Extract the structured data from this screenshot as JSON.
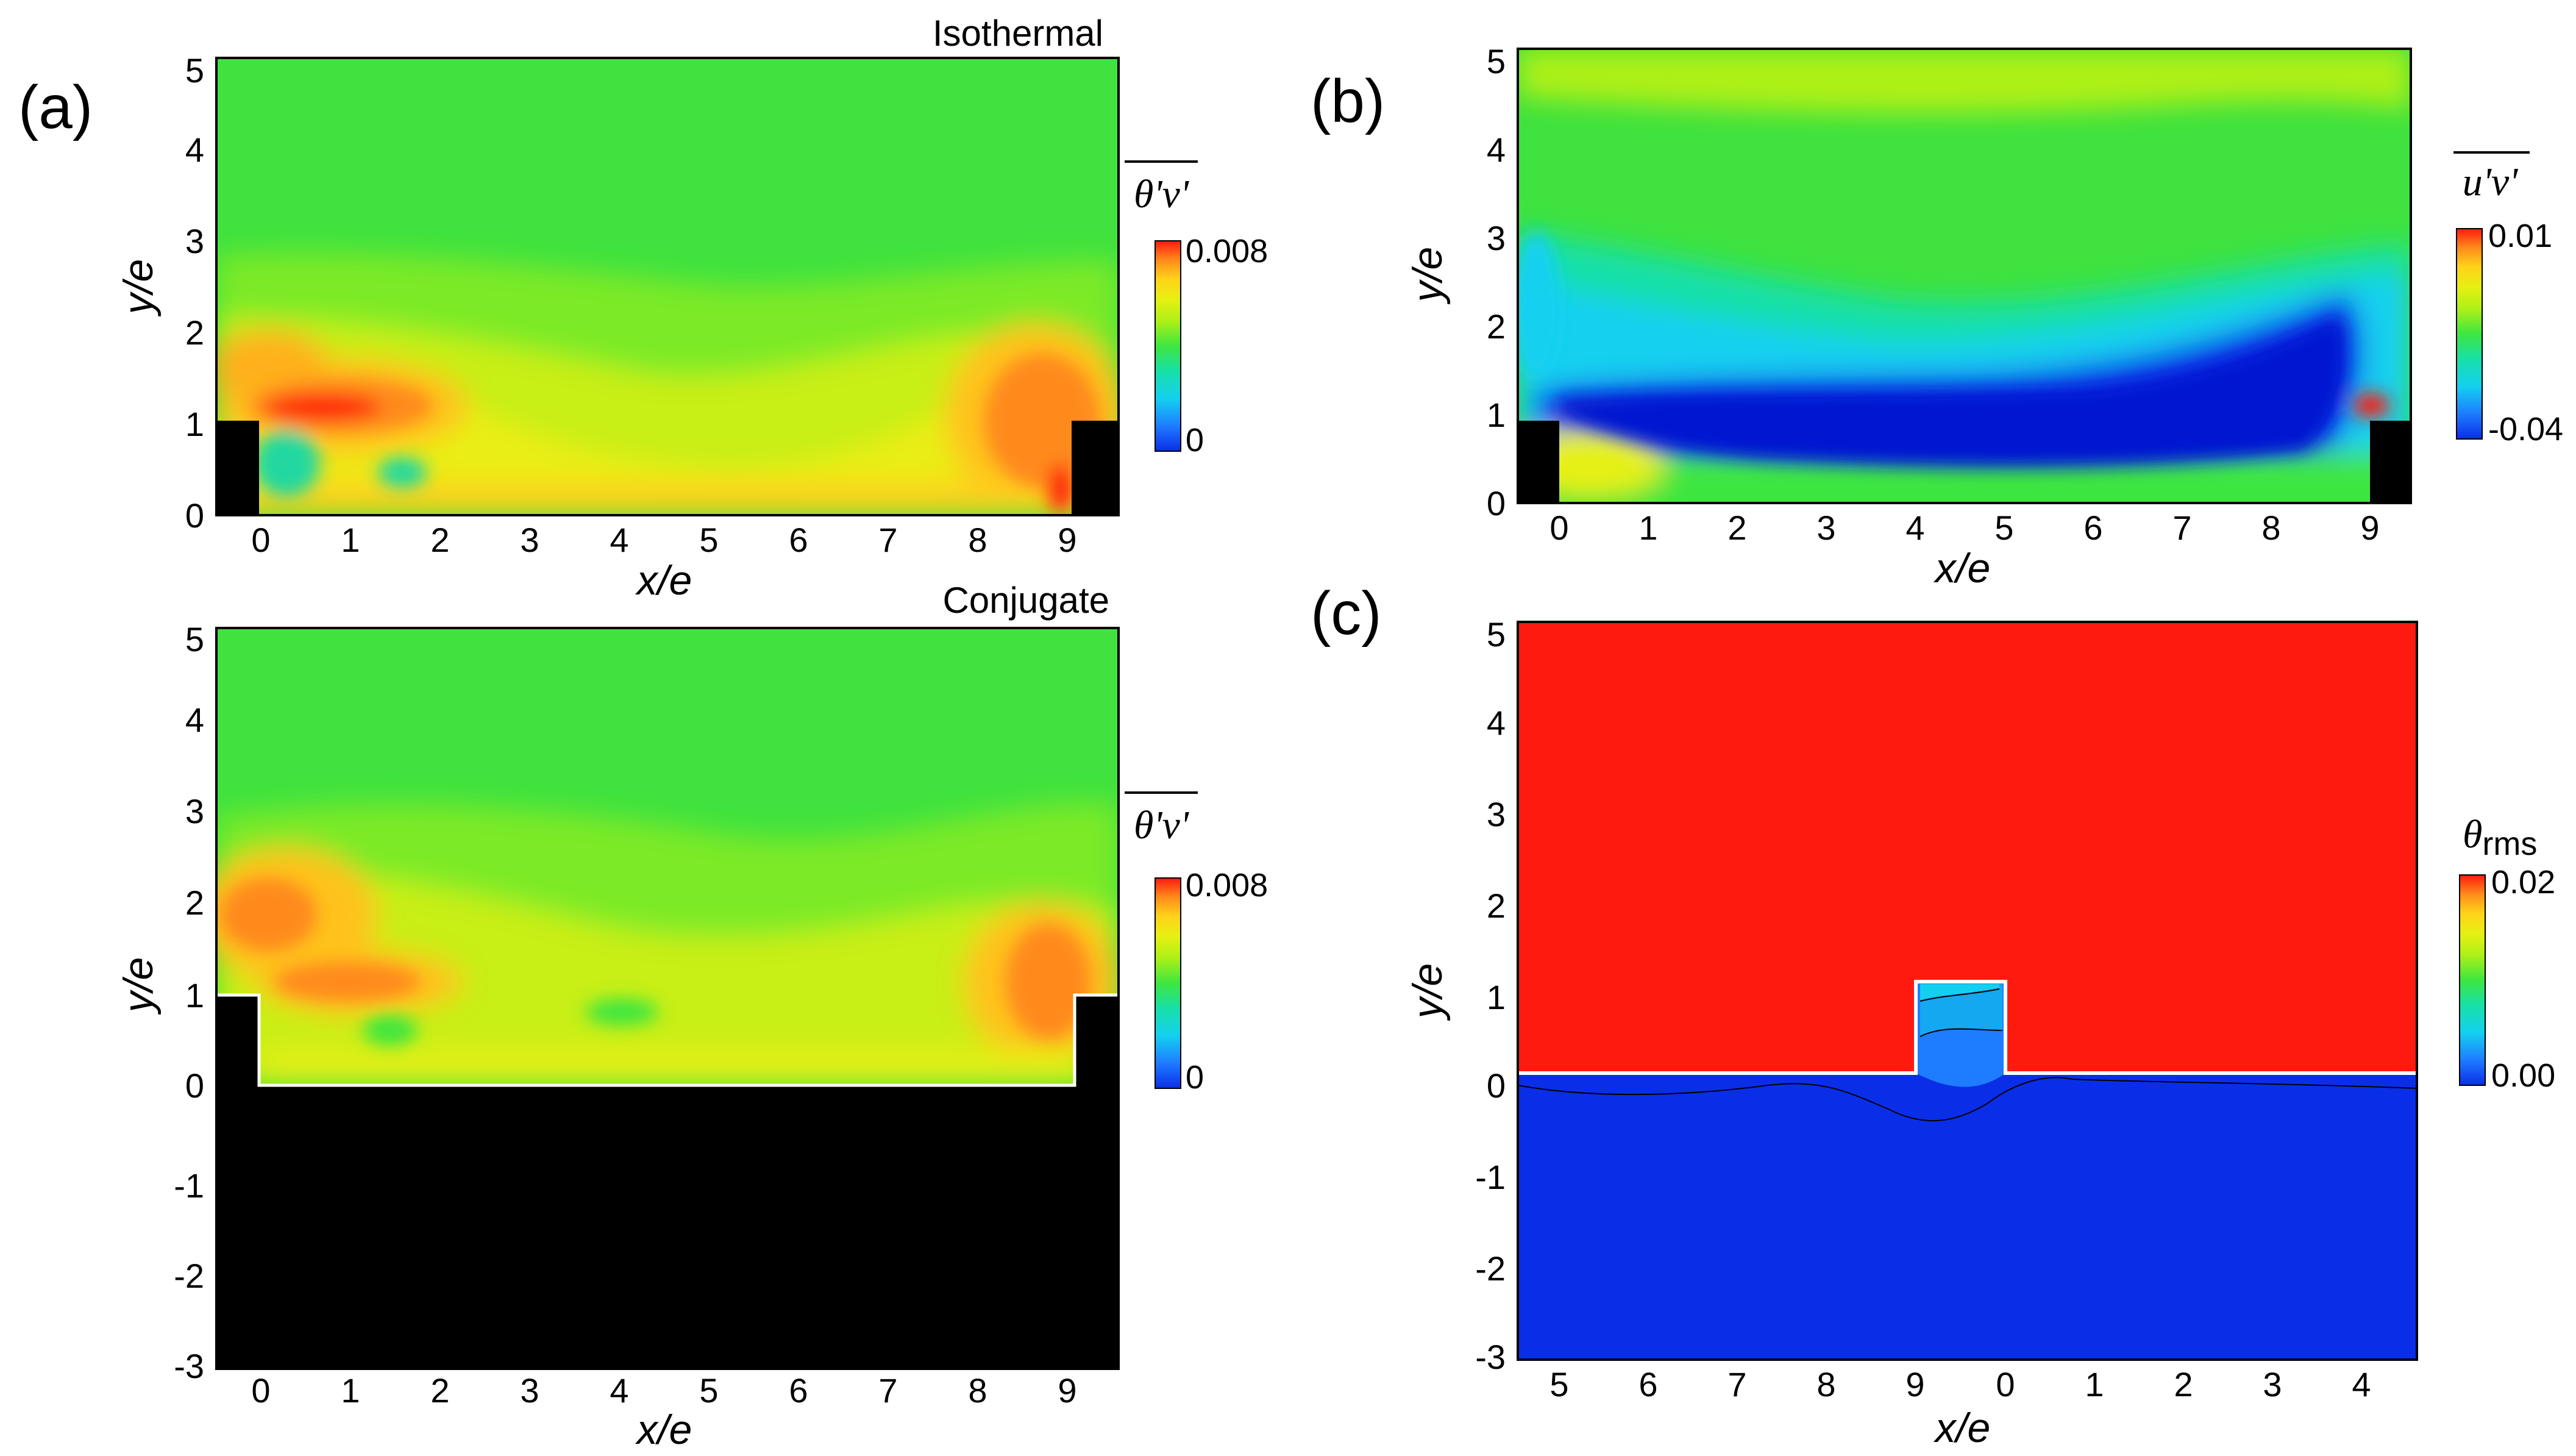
{
  "chart_data": [
    {
      "id": "a_top",
      "type": "heatmap",
      "panel_label": "(a)",
      "title": "Isothermal",
      "quantity": "θ'v'",
      "xlabel": "x/e",
      "ylabel": "y/e",
      "xlim": [
        -0.45,
        9.55
      ],
      "ylim": [
        0,
        5.1
      ],
      "xticks": [
        "0",
        "1",
        "2",
        "3",
        "4",
        "5",
        "6",
        "7",
        "8",
        "9"
      ],
      "yticks": [
        "0",
        "1",
        "2",
        "3",
        "4",
        "5"
      ],
      "colorbar": {
        "title": "θ'v'",
        "min_label": "0",
        "max_label": "0.008",
        "min": 0,
        "max": 0.008
      },
      "ribs": [
        {
          "x0": -0.45,
          "x1": 0,
          "y1": 1
        },
        {
          "x0": 9,
          "x1": 9.55,
          "y1": 1
        }
      ],
      "fields": [
        {
          "region": "freestream",
          "value": 0.004
        },
        {
          "region": "shear-layer peak near x=0.5,y=1.1",
          "value": 0.0078
        },
        {
          "region": "rear rib peak near x=8.5,y=1.5",
          "value": 0.0068
        },
        {
          "region": "cavity floor",
          "value": 0.0055
        }
      ]
    },
    {
      "id": "a_bottom",
      "type": "heatmap",
      "title": "Conjugate",
      "quantity": "θ'v'",
      "xlabel": "x/e",
      "ylabel": "y/e",
      "xlim": [
        -0.45,
        9.55
      ],
      "ylim": [
        -3,
        5.1
      ],
      "xticks": [
        "0",
        "1",
        "2",
        "3",
        "4",
        "5",
        "6",
        "7",
        "8",
        "9"
      ],
      "yticks": [
        "-3",
        "-2",
        "-1",
        "0",
        "1",
        "2",
        "3",
        "4",
        "5"
      ],
      "colorbar": {
        "title": "θ'v'",
        "min_label": "0",
        "max_label": "0.008",
        "min": 0,
        "max": 0.008
      },
      "solid_region": {
        "y_max": 0,
        "rib_height": 1
      },
      "fields": [
        {
          "region": "freestream",
          "value": 0.004
        },
        {
          "region": "shear-layer peak near x=0.7,y=1.2",
          "value": 0.007
        },
        {
          "region": "rear rib peak near x=8.8,y=1.6",
          "value": 0.007
        }
      ]
    },
    {
      "id": "b",
      "type": "heatmap",
      "panel_label": "(b)",
      "quantity": "u'v'",
      "xlabel": "x/e",
      "ylabel": "y/e",
      "xlim": [
        -0.45,
        9.55
      ],
      "ylim": [
        0,
        5.1
      ],
      "xticks": [
        "0",
        "1",
        "2",
        "3",
        "4",
        "5",
        "6",
        "7",
        "8",
        "9"
      ],
      "yticks": [
        "0",
        "1",
        "2",
        "3",
        "4",
        "5"
      ],
      "colorbar": {
        "title": "u'v'",
        "min_label": "-0.04",
        "max_label": "0.01",
        "min": -0.04,
        "max": 0.01
      },
      "fields": [
        {
          "region": "freestream",
          "value": -0.005
        },
        {
          "region": "separated shear layer core",
          "value": -0.04
        },
        {
          "region": "near rib corner",
          "value": 0.01
        }
      ]
    },
    {
      "id": "c",
      "type": "heatmap",
      "panel_label": "(c)",
      "quantity": "θrms",
      "xlabel": "x/e",
      "ylabel": "y/e",
      "ylim": [
        -3,
        5.1
      ],
      "xticks": [
        "5",
        "6",
        "7",
        "8",
        "9",
        "0",
        "1",
        "2",
        "3",
        "4"
      ],
      "yticks": [
        "-3",
        "-2",
        "-1",
        "0",
        "1",
        "2",
        "3",
        "4",
        "5"
      ],
      "colorbar": {
        "title_main": "θ",
        "title_sub": "rms",
        "min_label": "0.00",
        "max_label": "0.02",
        "min": 0,
        "max": 0.02
      },
      "fields": [
        {
          "region": "fluid",
          "value": 0.02
        },
        {
          "region": "solid wall",
          "value": 0.0
        },
        {
          "region": "rib interior",
          "value": 0.006
        }
      ]
    }
  ]
}
